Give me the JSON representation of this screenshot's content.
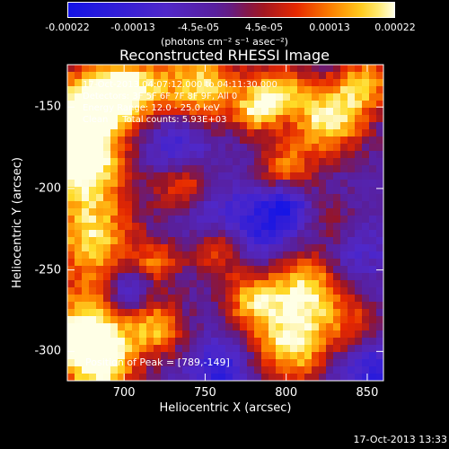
{
  "colorbar": {
    "ticks": [
      "-0.00022",
      "-0.00013",
      "-4.5e-05",
      "4.5e-05",
      "0.00013",
      "0.00022"
    ],
    "unit_label": "(photons cm⁻² s⁻¹ asec⁻²)",
    "range": [
      -0.00022,
      0.00022
    ]
  },
  "header": {
    "title": "Reconstructed RHESSI Image"
  },
  "info": {
    "time": "17-Oct-2013 04:07:12.000 to 04:11:30.000",
    "detectors": "Detectors: 3F 5F 6F 7F 8F 9F, All 0",
    "energy": "Energy Range: 12.0 - 25.0 keV",
    "clean": "Clean     Total counts: 5.93E+03",
    "peak": "Position of Peak = [789,-149]"
  },
  "footer": {
    "timestamp": "17-Oct-2013 13:33"
  },
  "chart_data": {
    "type": "heatmap",
    "title": "Reconstructed RHESSI Image",
    "xlabel": "Heliocentric X (arcsec)",
    "ylabel": "Heliocentric Y (arcsec)",
    "xlim": [
      665,
      860
    ],
    "ylim": [
      -318,
      -124
    ],
    "x_ticks": [
      700,
      750,
      800,
      850
    ],
    "y_ticks": [
      -150,
      -200,
      -250,
      -300
    ],
    "x_tick_labels": [
      "700",
      "750",
      "800",
      "850"
    ],
    "y_tick_labels": [
      "-150",
      "-200",
      "-250",
      "-300"
    ],
    "colormap": "RHESSI blue-purple-red-yellow-white",
    "peak": [
      789,
      -149
    ]
  }
}
